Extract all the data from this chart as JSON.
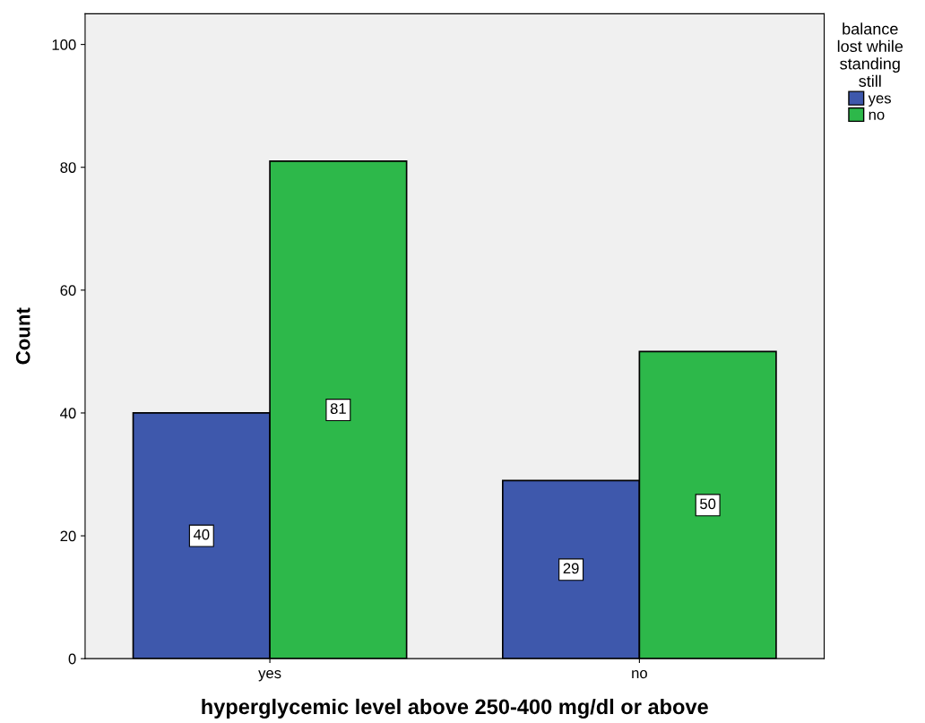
{
  "chart_data": {
    "type": "bar",
    "xlabel": "hyperglycemic level above 250-400 mg/dl or above",
    "ylabel": "Count",
    "categories": [
      "yes",
      "no"
    ],
    "series": [
      {
        "name": "yes",
        "color": "#3e58ac",
        "values": [
          40,
          29
        ]
      },
      {
        "name": "no",
        "color": "#2db84a",
        "values": [
          81,
          50
        ]
      }
    ],
    "legend_title": "balance\nlost while\nstanding\nstill",
    "legend": "right",
    "ylim": [
      0,
      105
    ],
    "yticks": [
      0,
      20,
      40,
      60,
      80,
      100
    ],
    "data_labels": true,
    "grid": false
  }
}
